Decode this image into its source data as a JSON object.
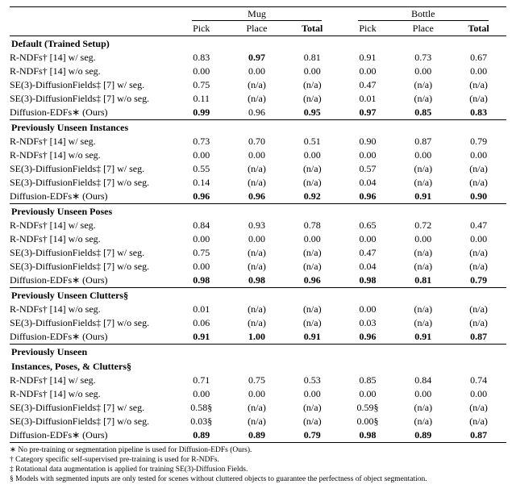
{
  "table": {
    "header": {
      "mug": "Mug",
      "bottle": "Bottle",
      "pick": "Pick",
      "place": "Place",
      "total": "Total"
    },
    "sections": [
      {
        "title": "Default (Trained Setup)",
        "rows": [
          {
            "method": "R-NDFs† [14] w/ seg.",
            "vals": [
              "0.83",
              "0.97",
              "0.81",
              "0.91",
              "0.73",
              "0.67"
            ],
            "bold": [
              false,
              true,
              false,
              false,
              false,
              false
            ]
          },
          {
            "method": "R-NDFs† [14] w/o seg.",
            "vals": [
              "0.00",
              "0.00",
              "0.00",
              "0.00",
              "0.00",
              "0.00"
            ],
            "bold": [
              false,
              false,
              false,
              false,
              false,
              false
            ]
          },
          {
            "method": "SE(3)-DiffusionFields‡ [7] w/ seg.",
            "vals": [
              "0.75",
              "(n/a)",
              "(n/a)",
              "0.47",
              "(n/a)",
              "(n/a)"
            ],
            "bold": [
              false,
              false,
              false,
              false,
              false,
              false
            ]
          },
          {
            "method": "SE(3)-DiffusionFields‡ [7] w/o seg.",
            "vals": [
              "0.11",
              "(n/a)",
              "(n/a)",
              "0.01",
              "(n/a)",
              "(n/a)"
            ],
            "bold": [
              false,
              false,
              false,
              false,
              false,
              false
            ]
          },
          {
            "method": "Diffusion-EDFs∗ (Ours)",
            "vals": [
              "0.99",
              "0.96",
              "0.95",
              "0.97",
              "0.85",
              "0.83"
            ],
            "bold": [
              true,
              false,
              true,
              true,
              true,
              true
            ]
          }
        ]
      },
      {
        "title": "Previously Unseen Instances",
        "rows": [
          {
            "method": "R-NDFs† [14] w/ seg.",
            "vals": [
              "0.73",
              "0.70",
              "0.51",
              "0.90",
              "0.87",
              "0.79"
            ],
            "bold": [
              false,
              false,
              false,
              false,
              false,
              false
            ]
          },
          {
            "method": "R-NDFs† [14] w/o seg.",
            "vals": [
              "0.00",
              "0.00",
              "0.00",
              "0.00",
              "0.00",
              "0.00"
            ],
            "bold": [
              false,
              false,
              false,
              false,
              false,
              false
            ]
          },
          {
            "method": "SE(3)-DiffusionFields‡ [7] w/ seg.",
            "vals": [
              "0.55",
              "(n/a)",
              "(n/a)",
              "0.57",
              "(n/a)",
              "(n/a)"
            ],
            "bold": [
              false,
              false,
              false,
              false,
              false,
              false
            ]
          },
          {
            "method": "SE(3)-DiffusionFields‡ [7] w/o seg.",
            "vals": [
              "0.14",
              "(n/a)",
              "(n/a)",
              "0.04",
              "(n/a)",
              "(n/a)"
            ],
            "bold": [
              false,
              false,
              false,
              false,
              false,
              false
            ]
          },
          {
            "method": "Diffusion-EDFs∗ (Ours)",
            "vals": [
              "0.96",
              "0.96",
              "0.92",
              "0.96",
              "0.91",
              "0.90"
            ],
            "bold": [
              true,
              true,
              true,
              true,
              true,
              true
            ]
          }
        ]
      },
      {
        "title": "Previously Unseen Poses",
        "rows": [
          {
            "method": "R-NDFs† [14] w/ seg.",
            "vals": [
              "0.84",
              "0.93",
              "0.78",
              "0.65",
              "0.72",
              "0.47"
            ],
            "bold": [
              false,
              false,
              false,
              false,
              false,
              false
            ]
          },
          {
            "method": "R-NDFs† [14] w/o seg.",
            "vals": [
              "0.00",
              "0.00",
              "0.00",
              "0.00",
              "0.00",
              "0.00"
            ],
            "bold": [
              false,
              false,
              false,
              false,
              false,
              false
            ]
          },
          {
            "method": "SE(3)-DiffusionFields‡ [7] w/ seg.",
            "vals": [
              "0.75",
              "(n/a)",
              "(n/a)",
              "0.47",
              "(n/a)",
              "(n/a)"
            ],
            "bold": [
              false,
              false,
              false,
              false,
              false,
              false
            ]
          },
          {
            "method": "SE(3)-DiffusionFields‡ [7] w/o seg.",
            "vals": [
              "0.00",
              "(n/a)",
              "(n/a)",
              "0.04",
              "(n/a)",
              "(n/a)"
            ],
            "bold": [
              false,
              false,
              false,
              false,
              false,
              false
            ]
          },
          {
            "method": "Diffusion-EDFs∗ (Ours)",
            "vals": [
              "0.98",
              "0.98",
              "0.96",
              "0.98",
              "0.81",
              "0.79"
            ],
            "bold": [
              true,
              true,
              true,
              true,
              true,
              true
            ]
          }
        ]
      },
      {
        "title": "Previously Unseen Clutters§",
        "rows": [
          {
            "method": "R-NDFs† [14] w/o seg.",
            "vals": [
              "0.01",
              "(n/a)",
              "(n/a)",
              "0.00",
              "(n/a)",
              "(n/a)"
            ],
            "bold": [
              false,
              false,
              false,
              false,
              false,
              false
            ]
          },
          {
            "method": "SE(3)-DiffusionFields‡ [7] w/o seg.",
            "vals": [
              "0.06",
              "(n/a)",
              "(n/a)",
              "0.03",
              "(n/a)",
              "(n/a)"
            ],
            "bold": [
              false,
              false,
              false,
              false,
              false,
              false
            ]
          },
          {
            "method": "Diffusion-EDFs∗ (Ours)",
            "vals": [
              "0.91",
              "1.00",
              "0.91",
              "0.96",
              "0.91",
              "0.87"
            ],
            "bold": [
              true,
              true,
              true,
              true,
              true,
              true
            ]
          }
        ]
      },
      {
        "title": "Previously Unseen",
        "title2": "Instances, Poses, & Clutters§",
        "rows": [
          {
            "method": "R-NDFs† [14] w/ seg.",
            "vals": [
              "0.71",
              "0.75",
              "0.53",
              "0.85",
              "0.84",
              "0.74"
            ],
            "bold": [
              false,
              false,
              false,
              false,
              false,
              false
            ]
          },
          {
            "method": "R-NDFs† [14] w/o seg.",
            "vals": [
              "0.00",
              "0.00",
              "0.00",
              "0.00",
              "0.00",
              "0.00"
            ],
            "bold": [
              false,
              false,
              false,
              false,
              false,
              false
            ]
          },
          {
            "method": "SE(3)-DiffusionFields‡ [7] w/ seg.",
            "vals": [
              "0.58§",
              "(n/a)",
              "(n/a)",
              "0.59§",
              "(n/a)",
              "(n/a)"
            ],
            "bold": [
              false,
              false,
              false,
              false,
              false,
              false
            ]
          },
          {
            "method": "SE(3)-DiffusionFields‡ [7] w/o seg.",
            "vals": [
              "0.03§",
              "(n/a)",
              "(n/a)",
              "0.00§",
              "(n/a)",
              "(n/a)"
            ],
            "bold": [
              false,
              false,
              false,
              false,
              false,
              false
            ]
          },
          {
            "method": "Diffusion-EDFs∗ (Ours)",
            "vals": [
              "0.89",
              "0.89",
              "0.79",
              "0.98",
              "0.89",
              "0.87"
            ],
            "bold": [
              true,
              true,
              true,
              true,
              true,
              true
            ]
          }
        ]
      }
    ]
  },
  "footnotes": [
    "∗ No pre-training or segmentation pipeline is used for Diffusion-EDFs (Ours).",
    "† Category specific self-supervised pre-training is used for R-NDFs.",
    "‡ Rotational data augmentation is applied for training SE(3)-Diffusion Fields.",
    "§ Models with segmented inputs are only tested for scenes without cluttered objects to guarantee the perfectness of object segmentation."
  ]
}
